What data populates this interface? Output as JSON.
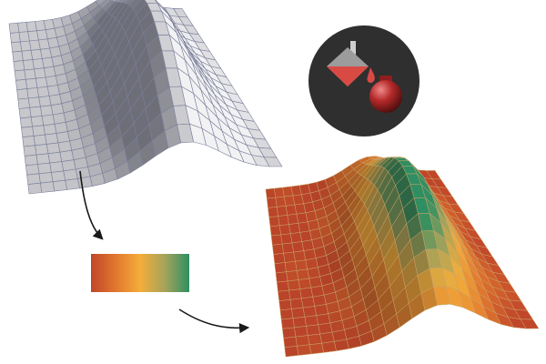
{
  "scene": {
    "kind": "illustration",
    "steps": [
      "gray-mesh-surface",
      "colormap-bar",
      "colored-mesh-surface"
    ]
  },
  "surface": {
    "grid_cols": 20,
    "grid_rows": 18,
    "peak_u": 0.62,
    "peak_v": 0.55,
    "sigma_u": 0.14,
    "sigma_v": 0.32
  },
  "gray_surface": {
    "fill_light": "#f2f2f4",
    "fill_dark": "#6e6e78",
    "line_color": "#7a7f9a"
  },
  "colormap": {
    "stops": [
      "#c0462a",
      "#e1772e",
      "#f4ad3a",
      "#a6a35a",
      "#2f8f62"
    ],
    "orientation": "horizontal"
  },
  "colored_surface": {
    "line_color": "#c9a46a"
  },
  "icon": {
    "name": "paint-bucket-icon",
    "background": "#2f2f2f",
    "bucket_color": "#d94a45",
    "bucket_top": "#9c9c9c",
    "sphere_color": "#b52a2a"
  },
  "arrows": {
    "color": "#1a1a1a"
  }
}
